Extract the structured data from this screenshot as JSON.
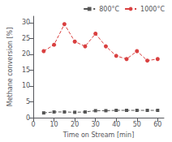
{
  "chart_data": {
    "type": "line",
    "xlabel": "Time on Stream [min]",
    "ylabel": "Methane conversion [%]",
    "x": [
      5,
      10,
      15,
      20,
      25,
      30,
      35,
      40,
      45,
      50,
      55,
      60
    ],
    "series": [
      {
        "name": "800°C",
        "color": "#555555",
        "marker": "square",
        "line_style": "dashed",
        "values": [
          1.5,
          1.8,
          1.8,
          1.7,
          1.8,
          2.2,
          2.2,
          2.3,
          2.3,
          2.3,
          2.3,
          2.3
        ]
      },
      {
        "name": "1000°C",
        "color": "#d94040",
        "marker": "circle",
        "line_style": "dashed",
        "values": [
          21.0,
          23.0,
          29.5,
          24.0,
          22.5,
          26.5,
          22.5,
          19.5,
          18.5,
          21.0,
          18.0,
          18.5
        ]
      }
    ],
    "xlim": [
      0,
      63
    ],
    "xticks": [
      0,
      10,
      20,
      30,
      40,
      50,
      60
    ],
    "ylim": [
      0,
      32
    ],
    "yticks": [
      0,
      5,
      10,
      15,
      20,
      25,
      30
    ],
    "grid": false,
    "legend": "upper right"
  }
}
